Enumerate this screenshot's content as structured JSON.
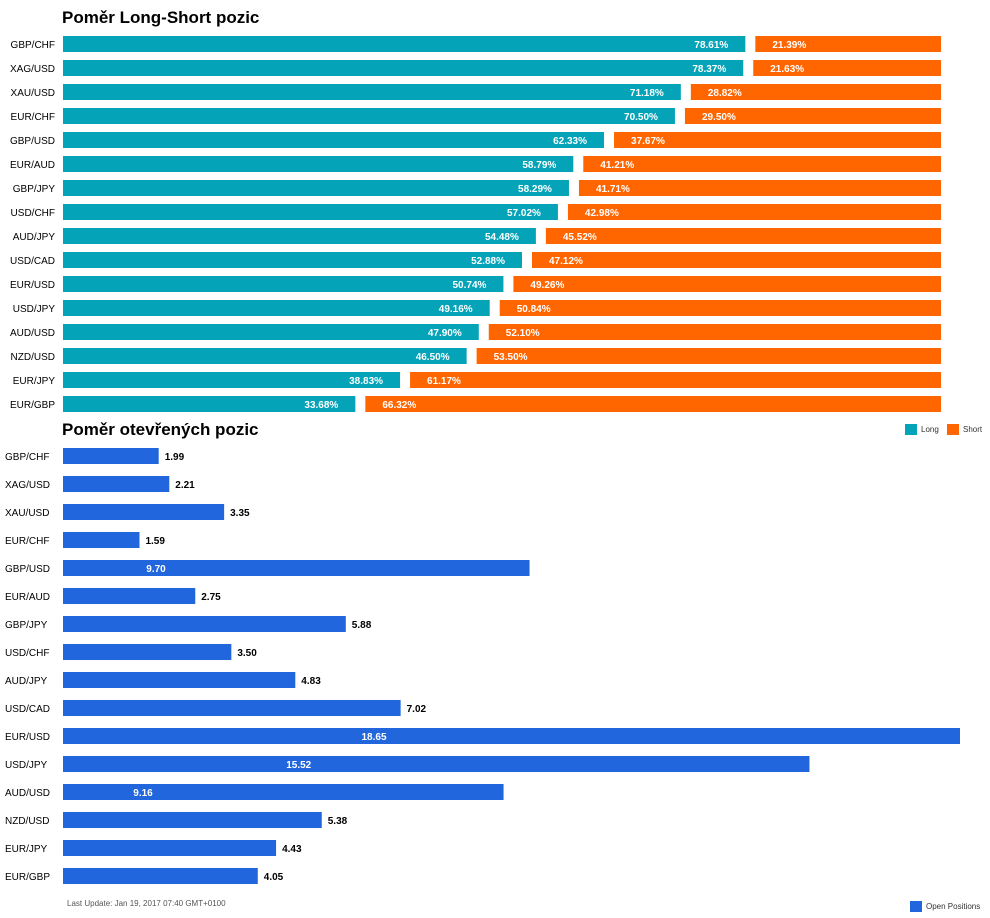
{
  "chart_data": [
    {
      "type": "bar",
      "title": "Poměr Long-Short pozic",
      "orientation": "horizontal",
      "stacked": "percent",
      "categories": [
        "GBP/CHF",
        "XAG/USD",
        "XAU/USD",
        "EUR/CHF",
        "GBP/USD",
        "EUR/AUD",
        "GBP/JPY",
        "USD/CHF",
        "AUD/JPY",
        "USD/CAD",
        "EUR/USD",
        "USD/JPY",
        "AUD/USD",
        "NZD/USD",
        "EUR/JPY",
        "EUR/GBP"
      ],
      "series": [
        {
          "name": "Long",
          "color": "#05a3b8",
          "values": [
            78.61,
            78.37,
            71.18,
            70.5,
            62.33,
            58.79,
            58.29,
            57.02,
            54.48,
            52.88,
            50.74,
            49.16,
            47.9,
            46.5,
            38.83,
            33.68
          ],
          "labels": [
            "78.61%",
            "78.37%",
            "71.18%",
            "70.50%",
            "62.33%",
            "58.79%",
            "58.29%",
            "57.02%",
            "54.48%",
            "52.88%",
            "50.74%",
            "49.16%",
            "47.90%",
            "46.50%",
            "38.83%",
            "33.68%"
          ]
        },
        {
          "name": "Short",
          "color": "#ff6600",
          "values": [
            21.39,
            21.63,
            28.82,
            29.5,
            37.67,
            41.21,
            41.71,
            42.98,
            45.52,
            47.12,
            49.26,
            50.84,
            52.1,
            53.5,
            61.17,
            66.32
          ],
          "labels": [
            "21.39%",
            "21.63%",
            "28.82%",
            "29.50%",
            "37.67%",
            "41.21%",
            "41.71%",
            "42.98%",
            "45.52%",
            "47.12%",
            "49.26%",
            "50.84%",
            "52.10%",
            "53.50%",
            "61.17%",
            "66.32%"
          ]
        }
      ],
      "xlim": [
        0,
        100
      ],
      "grid": false,
      "legend": "right"
    },
    {
      "type": "bar",
      "title": "Poměr otevřených pozic",
      "orientation": "horizontal",
      "categories": [
        "GBP/CHF",
        "XAG/USD",
        "XAU/USD",
        "EUR/CHF",
        "GBP/USD",
        "EUR/AUD",
        "GBP/JPY",
        "USD/CHF",
        "AUD/JPY",
        "USD/CAD",
        "EUR/USD",
        "USD/JPY",
        "AUD/USD",
        "NZD/USD",
        "EUR/JPY",
        "EUR/GBP"
      ],
      "series": [
        {
          "name": "Open Positions",
          "color": "#2266dd",
          "values": [
            1.99,
            2.21,
            3.35,
            1.59,
            9.7,
            2.75,
            5.88,
            3.5,
            4.83,
            7.02,
            18.65,
            15.52,
            9.16,
            5.38,
            4.43,
            4.05
          ],
          "labels": [
            "1.99",
            "2.21",
            "3.35",
            "1.59",
            "9.70",
            "2.75",
            "5.88",
            "3.50",
            "4.83",
            "7.02",
            "18.65",
            "15.52",
            "9.16",
            "5.38",
            "4.43",
            "4.05"
          ]
        }
      ],
      "xlim": [
        0,
        18.65
      ],
      "grid": false,
      "legend": "bottom-right"
    }
  ],
  "footer": "Last Update: Jan 19, 2017 07:40 GMT+0100"
}
